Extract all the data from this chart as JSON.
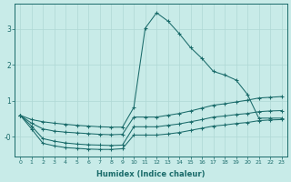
{
  "xlabel": "Humidex (Indice chaleur)",
  "bg_color": "#c8ebe8",
  "grid_color": "#afd8d5",
  "line_color": "#1a6b6a",
  "xlim": [
    -0.5,
    23.5
  ],
  "ylim": [
    -0.55,
    3.7
  ],
  "yticks": [
    0,
    1,
    2,
    3
  ],
  "ytick_labels": [
    "-0",
    "1",
    "2",
    "3"
  ],
  "xticks": [
    0,
    1,
    2,
    3,
    4,
    5,
    6,
    7,
    8,
    9,
    10,
    11,
    12,
    13,
    14,
    15,
    16,
    17,
    18,
    19,
    20,
    21,
    22,
    23
  ],
  "line1_x": [
    0,
    1,
    2,
    3,
    4,
    5,
    6,
    7,
    8,
    9,
    10,
    11,
    12,
    13,
    14,
    15,
    16,
    17,
    18,
    19,
    20,
    21,
    22,
    23
  ],
  "line1_y": [
    0.6,
    0.48,
    0.42,
    0.38,
    0.35,
    0.32,
    0.3,
    0.28,
    0.27,
    0.27,
    0.82,
    3.02,
    3.45,
    3.22,
    2.87,
    2.48,
    2.18,
    1.82,
    1.72,
    1.58,
    1.18,
    0.52,
    0.52,
    0.52
  ],
  "line2_x": [
    0,
    1,
    2,
    3,
    4,
    5,
    6,
    7,
    8,
    9,
    10,
    11,
    12,
    13,
    14,
    15,
    16,
    17,
    18,
    19,
    20,
    21,
    22,
    23
  ],
  "line2_y": [
    0.6,
    0.38,
    0.22,
    0.16,
    0.13,
    0.11,
    0.09,
    0.07,
    0.06,
    0.07,
    0.55,
    0.55,
    0.55,
    0.6,
    0.65,
    0.72,
    0.8,
    0.88,
    0.92,
    0.97,
    1.02,
    1.08,
    1.1,
    1.12
  ],
  "line3_x": [
    0,
    1,
    2,
    3,
    4,
    5,
    6,
    7,
    8,
    9,
    10,
    11,
    12,
    13,
    14,
    15,
    16,
    17,
    18,
    19,
    20,
    21,
    22,
    23
  ],
  "line3_y": [
    0.6,
    0.3,
    -0.05,
    -0.12,
    -0.17,
    -0.2,
    -0.22,
    -0.23,
    -0.24,
    -0.23,
    0.28,
    0.28,
    0.28,
    0.32,
    0.36,
    0.42,
    0.48,
    0.55,
    0.58,
    0.62,
    0.65,
    0.7,
    0.72,
    0.73
  ],
  "line4_x": [
    0,
    1,
    2,
    3,
    4,
    5,
    6,
    7,
    8,
    9,
    10,
    11,
    12,
    13,
    14,
    15,
    16,
    17,
    18,
    19,
    20,
    21,
    22,
    23
  ],
  "line4_y": [
    0.6,
    0.22,
    -0.18,
    -0.25,
    -0.3,
    -0.32,
    -0.34,
    -0.35,
    -0.35,
    -0.33,
    0.05,
    0.05,
    0.05,
    0.08,
    0.12,
    0.18,
    0.24,
    0.3,
    0.33,
    0.37,
    0.4,
    0.45,
    0.47,
    0.48
  ]
}
